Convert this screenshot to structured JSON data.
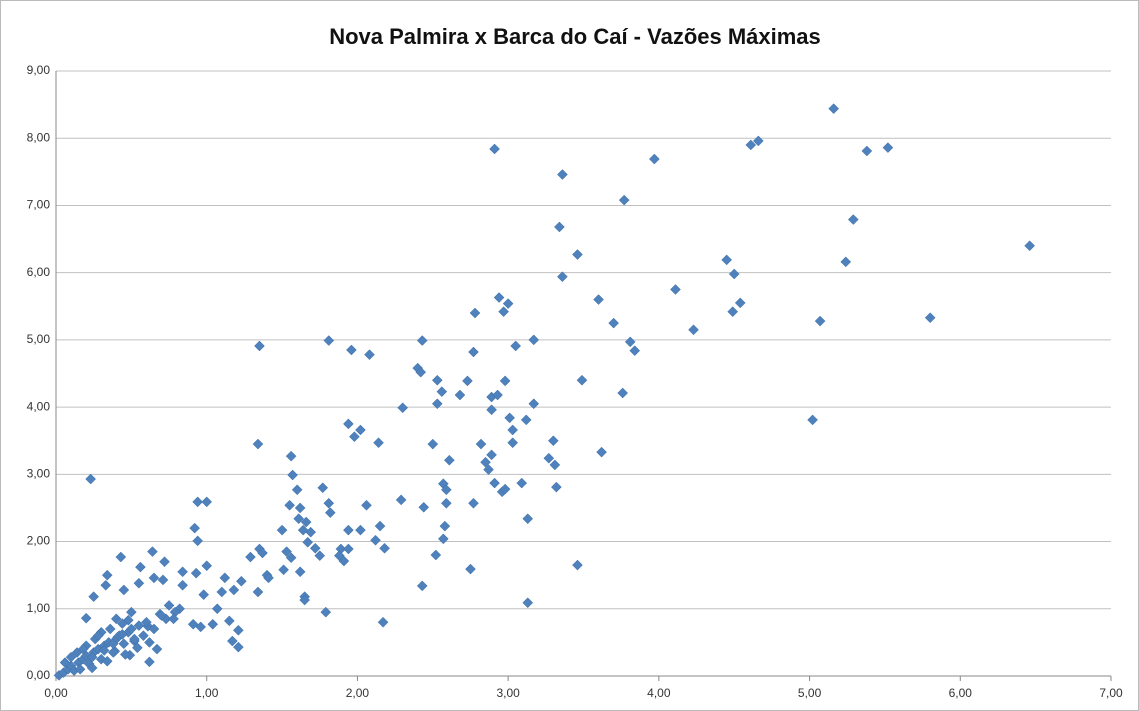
{
  "chart_data": {
    "type": "scatter",
    "title": "Nova Palmira x Barca do Caí - Vazões Máximas",
    "color": "#4f81bd",
    "grid": true,
    "xlim": [
      0,
      7
    ],
    "ylim": [
      0,
      9
    ],
    "xticks": [
      {
        "value": 0,
        "label": "0,00"
      },
      {
        "value": 1,
        "label": "1,00"
      },
      {
        "value": 2,
        "label": "2,00"
      },
      {
        "value": 3,
        "label": "3,00"
      },
      {
        "value": 4,
        "label": "4,00"
      },
      {
        "value": 5,
        "label": "5,00"
      },
      {
        "value": 6,
        "label": "6,00"
      },
      {
        "value": 7,
        "label": "7,00"
      }
    ],
    "yticks": [
      {
        "value": 0,
        "label": "0,00"
      },
      {
        "value": 1,
        "label": "1,00"
      },
      {
        "value": 2,
        "label": "2,00"
      },
      {
        "value": 3,
        "label": "3,00"
      },
      {
        "value": 4,
        "label": "4,00"
      },
      {
        "value": 5,
        "label": "5,00"
      },
      {
        "value": 6,
        "label": "6,00"
      },
      {
        "value": 7,
        "label": "7,00"
      },
      {
        "value": 8,
        "label": "8,00"
      },
      {
        "value": 9,
        "label": "9,00"
      }
    ],
    "x": [
      5.16,
      2.91,
      3.97,
      4.61,
      4.66,
      5.38,
      5.52,
      3.36,
      3.77,
      5.29,
      3.34,
      6.46,
      3.46,
      4.45,
      5.24,
      4.5,
      3.36,
      4.11,
      2.94,
      3.6,
      3.0,
      4.54,
      2.97,
      2.78,
      4.49,
      3.7,
      5.07,
      5.8,
      4.23,
      3.17,
      3.81,
      3.05,
      3.84,
      2.77,
      1.35,
      1.81,
      1.96,
      2.08,
      2.43,
      2.4,
      2.42,
      2.53,
      2.56,
      2.53,
      2.68,
      2.73,
      2.98,
      2.89,
      2.93,
      3.49,
      3.76,
      2.3,
      2.89,
      3.17,
      3.01,
      3.12,
      3.03,
      5.02,
      1.94,
      2.02,
      1.98,
      1.34,
      2.14,
      2.5,
      3.03,
      2.82,
      3.3,
      1.56,
      2.61,
      2.85,
      2.87,
      3.27,
      3.31,
      3.62,
      2.89,
      1.57,
      0.23,
      2.57,
      2.59,
      2.91,
      2.96,
      3.09,
      2.98,
      3.32,
      1.6,
      1.77,
      0.94,
      1.0,
      2.77,
      2.59,
      1.81,
      2.06,
      2.29,
      2.44,
      1.55,
      1.62,
      1.82,
      3.13,
      1.61,
      1.66,
      2.15,
      2.58,
      0.92,
      1.5,
      1.94,
      2.02,
      1.64,
      1.69,
      2.57,
      2.12,
      0.94,
      1.67,
      1.72,
      1.35,
      1.89,
      2.18,
      1.94,
      0.64,
      1.75,
      1.53,
      1.37,
      2.52,
      1.88,
      1.29,
      1.56,
      0.43,
      0.72,
      1.91,
      0.56,
      3.46,
      1.0,
      2.75,
      1.51,
      1.62,
      0.84,
      0.93,
      0.34,
      1.4,
      0.65,
      1.41,
      1.12,
      1.23,
      0.71,
      0.33,
      0.55,
      0.84,
      0.45,
      1.34,
      1.18,
      1.1,
      0.98,
      0.25,
      1.65,
      1.65,
      2.43,
      3.13,
      1.79,
      2.17,
      0.2,
      0.91,
      1.04,
      1.15,
      1.21,
      1.17,
      1.21,
      0.62,
      0.96,
      1.07,
      0.82,
      0.79,
      0.69,
      0.73,
      0.61,
      0.48,
      0.41,
      0.52,
      0.67,
      0.49,
      0.39,
      0.02,
      0.05,
      0.08,
      0.1,
      0.12,
      0.15,
      0.18,
      0.2,
      0.22,
      0.25,
      0.28,
      0.3,
      0.32,
      0.35,
      0.38,
      0.4,
      0.42,
      0.45,
      0.48,
      0.5,
      0.52,
      0.55,
      0.58,
      0.6,
      0.65,
      0.7,
      0.75,
      0.78,
      0.14,
      0.2,
      0.26,
      0.3,
      0.36,
      0.44,
      0.1,
      0.06,
      0.16,
      0.24,
      0.34,
      0.46,
      0.54,
      0.62,
      0.28,
      0.4,
      0.5,
      0.18,
      0.24,
      0.32,
      0.38,
      0.44
    ],
    "values": [
      8.44,
      7.84,
      7.69,
      7.9,
      7.96,
      7.81,
      7.86,
      7.46,
      7.08,
      6.79,
      6.68,
      6.4,
      6.27,
      6.19,
      6.16,
      5.98,
      5.94,
      5.75,
      5.63,
      5.6,
      5.54,
      5.55,
      5.42,
      5.4,
      5.42,
      5.25,
      5.28,
      5.33,
      5.15,
      5.0,
      4.97,
      4.91,
      4.84,
      4.82,
      4.91,
      4.99,
      4.85,
      4.78,
      4.99,
      4.58,
      4.52,
      4.4,
      4.23,
      4.05,
      4.18,
      4.39,
      4.39,
      4.15,
      4.18,
      4.4,
      4.21,
      3.99,
      3.96,
      4.05,
      3.84,
      3.81,
      3.66,
      3.81,
      3.75,
      3.66,
      3.56,
      3.45,
      3.47,
      3.45,
      3.47,
      3.45,
      3.5,
      3.27,
      3.21,
      3.18,
      3.07,
      3.24,
      3.14,
      3.33,
      3.29,
      2.99,
      2.93,
      2.86,
      2.77,
      2.87,
      2.74,
      2.87,
      2.78,
      2.81,
      2.77,
      2.8,
      2.59,
      2.59,
      2.57,
      2.57,
      2.57,
      2.54,
      2.62,
      2.51,
      2.54,
      2.5,
      2.43,
      2.34,
      2.34,
      2.29,
      2.23,
      2.23,
      2.2,
      2.17,
      2.17,
      2.17,
      2.17,
      2.14,
      2.04,
      2.02,
      2.01,
      1.99,
      1.9,
      1.89,
      1.89,
      1.9,
      1.89,
      1.85,
      1.79,
      1.85,
      1.83,
      1.8,
      1.79,
      1.77,
      1.76,
      1.77,
      1.7,
      1.71,
      1.62,
      1.65,
      1.64,
      1.59,
      1.58,
      1.55,
      1.55,
      1.53,
      1.5,
      1.5,
      1.46,
      1.46,
      1.46,
      1.41,
      1.43,
      1.35,
      1.38,
      1.35,
      1.28,
      1.25,
      1.28,
      1.25,
      1.21,
      1.18,
      1.18,
      1.13,
      1.34,
      1.09,
      0.95,
      0.8,
      0.86,
      0.77,
      0.77,
      0.82,
      0.68,
      0.52,
      0.43,
      0.21,
      0.73,
      1.0,
      1.0,
      0.95,
      0.92,
      0.85,
      0.74,
      0.83,
      0.58,
      0.52,
      0.4,
      0.31,
      0.37,
      0.01,
      0.05,
      0.1,
      0.15,
      0.08,
      0.2,
      0.25,
      0.3,
      0.18,
      0.35,
      0.4,
      0.25,
      0.45,
      0.5,
      0.35,
      0.55,
      0.6,
      0.48,
      0.65,
      0.7,
      0.55,
      0.75,
      0.6,
      0.8,
      0.7,
      0.9,
      1.05,
      0.85,
      0.35,
      0.45,
      0.55,
      0.65,
      0.7,
      0.78,
      0.28,
      0.2,
      0.1,
      0.12,
      0.22,
      0.32,
      0.42,
      0.5,
      0.6,
      0.85,
      0.95,
      0.4,
      0.28,
      0.38,
      0.48,
      0.62
    ]
  }
}
